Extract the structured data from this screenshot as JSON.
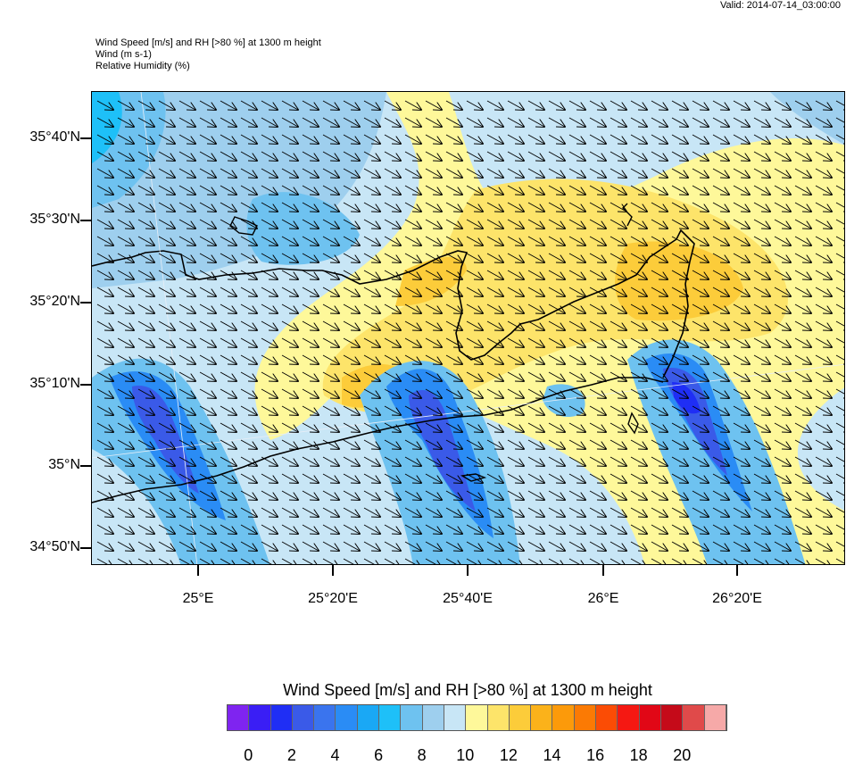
{
  "header": {
    "valid": "Valid: 2014-07-14_03:00:00",
    "line1": "Wind Speed [m/s] and RH [>80 %] at 1300 m height",
    "line2": "Wind   (m s-1)",
    "line3": "Relative Humidity   (%)"
  },
  "axes": {
    "lat_labels": [
      "35°40'N",
      "35°30'N",
      "35°20'N",
      "35°10'N",
      "35°N",
      "34°50'N"
    ],
    "lon_labels": [
      "25°E",
      "25°20'E",
      "25°40'E",
      "26°E",
      "26°20'E"
    ]
  },
  "colorbar": {
    "title": "Wind Speed [m/s] and RH [>80 %] at 1300 m height",
    "colors": [
      "#7f24f0",
      "#3a1ef5",
      "#1f2ef5",
      "#3a5ae8",
      "#3a74ee",
      "#2a8cf5",
      "#1aa8f5",
      "#1ec0f8",
      "#6ec2f0",
      "#9ecfee",
      "#c8e6f6",
      "#fef89a",
      "#fde46a",
      "#fccc3a",
      "#fbb21a",
      "#fc9a0a",
      "#fb7a04",
      "#fb4c05",
      "#f51812",
      "#e10716",
      "#c50a19",
      "#e04a4a",
      "#f6a9a8"
    ],
    "labels": [
      "0",
      "2",
      "4",
      "6",
      "8",
      "10",
      "12",
      "14",
      "16",
      "18",
      "20"
    ]
  }
}
